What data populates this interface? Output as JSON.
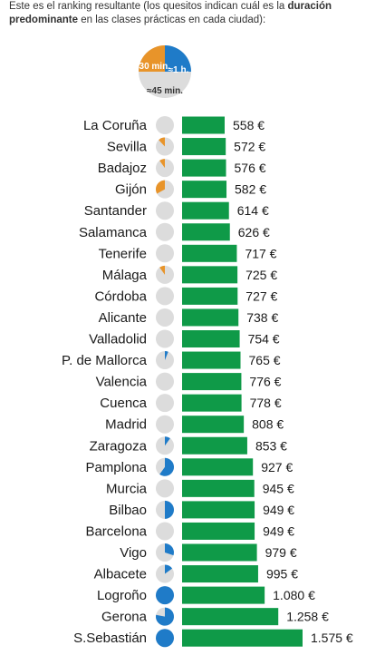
{
  "intro": {
    "text_before": "Este es el ranking resultante (los quesitos indican cuál es la ",
    "bold": "duración predominante",
    "text_after": " en las clases prácticas en cada ciudad):"
  },
  "legend": {
    "orange_label": "≈30 min.",
    "blue_label": "≈1 h.",
    "grey_label": "≈45 min."
  },
  "colors": {
    "bar": "#0f9a48",
    "orange": "#e8942a",
    "blue": "#1f7bc8",
    "grey": "#dcdcdc"
  },
  "chart_data": {
    "type": "bar",
    "orientation": "horizontal",
    "categories": [
      "La Coruña",
      "Sevilla",
      "Badajoz",
      "Gijón",
      "Santander",
      "Salamanca",
      "Tenerife",
      "Málaga",
      "Córdoba",
      "Alicante",
      "Valladolid",
      "P. de Mallorca",
      "Valencia",
      "Cuenca",
      "Madrid",
      "Zaragoza",
      "Pamplona",
      "Murcia",
      "Bilbao",
      "Barcelona",
      "Vigo",
      "Albacete",
      "Logroño",
      "Gerona",
      "S.Sebastián"
    ],
    "values": [
      558,
      572,
      576,
      582,
      614,
      626,
      717,
      725,
      727,
      738,
      754,
      765,
      776,
      778,
      808,
      853,
      927,
      945,
      949,
      949,
      979,
      995,
      1080,
      1258,
      1575
    ],
    "value_labels": [
      "558 €",
      "572 €",
      "576 €",
      "582 €",
      "614 €",
      "626 €",
      "717 €",
      "725 €",
      "727 €",
      "738 €",
      "754 €",
      "765 €",
      "776 €",
      "778 €",
      "808 €",
      "853 €",
      "927 €",
      "945 €",
      "949 €",
      "949 €",
      "979 €",
      "995 €",
      "1.080 €",
      "1.258 €",
      "1.575 €"
    ],
    "pies": [
      {
        "orange": 0,
        "blue": 0
      },
      {
        "orange": 0.12,
        "blue": 0
      },
      {
        "orange": 0.1,
        "blue": 0
      },
      {
        "orange": 0.33,
        "blue": 0
      },
      {
        "orange": 0,
        "blue": 0
      },
      {
        "orange": 0,
        "blue": 0
      },
      {
        "orange": 0,
        "blue": 0
      },
      {
        "orange": 0.1,
        "blue": 0
      },
      {
        "orange": 0,
        "blue": 0
      },
      {
        "orange": 0,
        "blue": 0
      },
      {
        "orange": 0,
        "blue": 0
      },
      {
        "orange": 0,
        "blue": 0.06
      },
      {
        "orange": 0,
        "blue": 0
      },
      {
        "orange": 0,
        "blue": 0
      },
      {
        "orange": 0,
        "blue": 0
      },
      {
        "orange": 0,
        "blue": 0.1
      },
      {
        "orange": 0,
        "blue": 0.6
      },
      {
        "orange": 0,
        "blue": 0
      },
      {
        "orange": 0,
        "blue": 0.5
      },
      {
        "orange": 0,
        "blue": 0
      },
      {
        "orange": 0,
        "blue": 0.3
      },
      {
        "orange": 0,
        "blue": 0.15
      },
      {
        "orange": 0,
        "blue": 1.0
      },
      {
        "orange": 0,
        "blue": 0.78
      },
      {
        "orange": 0,
        "blue": 1.0
      }
    ],
    "legend_pie": {
      "orange": 0.25,
      "blue": 0.25
    }
  }
}
